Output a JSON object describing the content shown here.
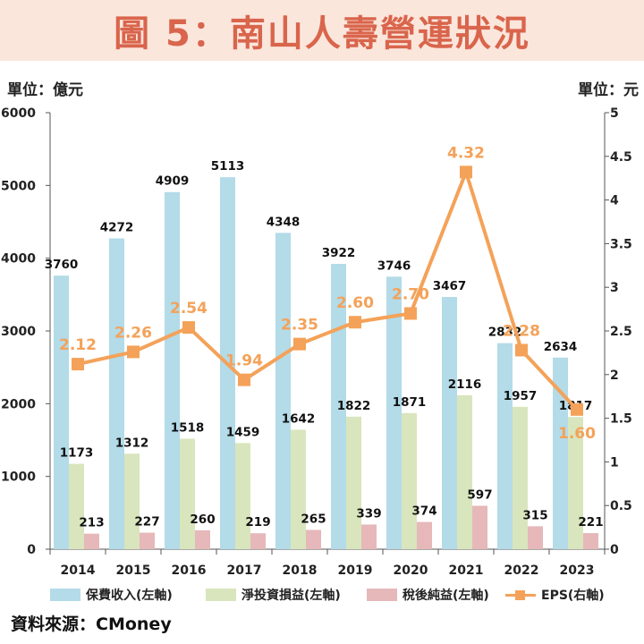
{
  "title": "圖 5：南山人壽營運狀況",
  "left_unit": "單位：億元",
  "right_unit": "單位：元",
  "source": "資料來源：CMoney",
  "colors": {
    "premium": "#b3dbe8",
    "investment": "#d9e5bd",
    "net_income": "#e6b8b9",
    "eps": "#f4a259",
    "title": "#d9654c"
  },
  "chart_data": {
    "type": "bar+line",
    "categories": [
      "2014",
      "2015",
      "2016",
      "2017",
      "2018",
      "2019",
      "2020",
      "2021",
      "2022",
      "2023"
    ],
    "series": [
      {
        "name": "保費收入(左軸)",
        "type": "bar",
        "axis": "left",
        "values": [
          3760,
          4272,
          4909,
          5113,
          4348,
          3922,
          3746,
          3467,
          2832,
          2634
        ]
      },
      {
        "name": "淨投資損益(左軸)",
        "type": "bar",
        "axis": "left",
        "values": [
          1173,
          1312,
          1518,
          1459,
          1642,
          1822,
          1871,
          2116,
          1957,
          1817
        ]
      },
      {
        "name": "稅後純益(左軸)",
        "type": "bar",
        "axis": "left",
        "values": [
          213,
          227,
          260,
          219,
          265,
          339,
          374,
          597,
          315,
          221
        ]
      },
      {
        "name": "EPS(右軸)",
        "type": "line",
        "axis": "right",
        "values": [
          2.12,
          2.26,
          2.54,
          1.94,
          2.35,
          2.6,
          2.7,
          4.32,
          2.28,
          1.6
        ],
        "labels": [
          "2.12",
          "2.26",
          "2.54",
          "1.94",
          "2.35",
          "2.60",
          "2.70",
          "4.32",
          "2.28",
          "1.60"
        ]
      }
    ],
    "y_left": {
      "min": 0,
      "max": 6000,
      "ticks": [
        "0",
        "1000",
        "2000",
        "3000",
        "4000",
        "5000",
        "6000"
      ]
    },
    "y_right": {
      "min": 0,
      "max": 5,
      "ticks": [
        "0",
        "0.5",
        "1",
        "1.5",
        "2",
        "2.5",
        "3",
        "3.5",
        "4",
        "4.5",
        "5"
      ]
    },
    "legend": [
      "保費收入(左軸)",
      "淨投資損益(左軸)",
      "稅後純益(左軸)",
      "EPS(右軸)"
    ]
  }
}
